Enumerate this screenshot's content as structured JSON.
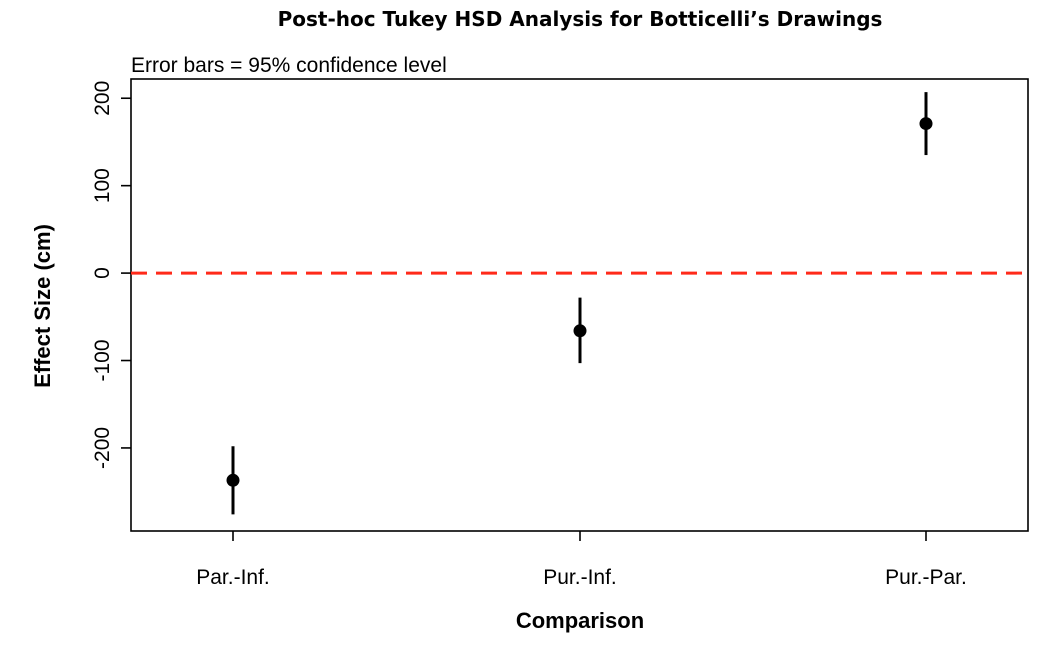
{
  "chart_data": {
    "type": "scatter",
    "title": "Post-hoc Tukey HSD Analysis for Botticelli’s Drawings",
    "subtitle": "Error bars = 95% confidence level",
    "xlabel": "Comparison",
    "ylabel": "Effect Size (cm)",
    "categories": [
      "Par.-Inf.",
      "Pur.-Inf.",
      "Pur.-Par."
    ],
    "series": [
      {
        "values": [
          -237,
          -66,
          171
        ],
        "lower": [
          -276,
          -103,
          135
        ],
        "upper": [
          -198,
          -28,
          207
        ]
      }
    ],
    "yticks": [
      -200,
      -100,
      0,
      100,
      200
    ],
    "ylim": [
      -295,
      222
    ],
    "reference_line": {
      "y": 0,
      "color": "#ff2a1a",
      "style": "dashed"
    },
    "grid": false,
    "legend": "none",
    "colors": {
      "points": "#000000",
      "error_bars": "#000000",
      "frame": "#000000"
    }
  }
}
